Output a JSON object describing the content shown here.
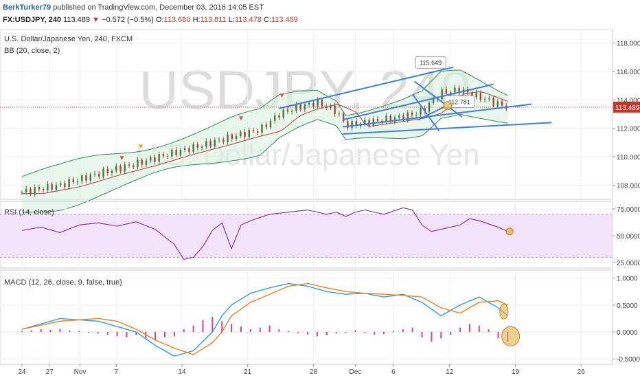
{
  "header": {
    "author": "BerkTurker79",
    "published": "published on TradingView.com, December 03, 2016 14:05 EST",
    "symbol": "FX:USDJPY, 240",
    "last": "113.489",
    "change_arrow": "▼",
    "change": "−0.572 (−0.5%)",
    "o_label": "O:",
    "o_value": "113.680",
    "h_label": "H:",
    "h_value": "113.811",
    "l_label": "L:",
    "l_value": "113.478",
    "c_label": "C:",
    "c_value": "113.489"
  },
  "watermark": {
    "line1": "USDJPY, 240",
    "line2": "U.S. Dollar/Japanese Yen"
  },
  "colors": {
    "up": "#3d7a3d",
    "down": "#b23b3b",
    "bb": "#2e8b57",
    "basis": "#b23b3b",
    "rsi": "#7a2a8c",
    "rsiBand": "#f3e3fa",
    "macd": "#2f9bde",
    "signal": "#f07f1e",
    "hist": "#d63e9a",
    "drawing": "#3f7fd4",
    "highlight": "#e0b34a"
  },
  "chart_data": [
    {
      "type": "candlestick",
      "title": "U.S. Dollar/Japanese Yen, 240, FXCM",
      "indicator": "BB (20, close, 2)",
      "ylim": [
        107,
        119
      ],
      "y_ticks": [
        "108.000",
        "110.000",
        "112.000",
        "114.000",
        "116.000",
        "118.000"
      ],
      "last_price": "113.489",
      "price_path": [
        [
          0,
          107.5
        ],
        [
          4,
          108.0
        ],
        [
          8,
          108.8
        ],
        [
          12,
          109.5
        ],
        [
          16,
          110.3
        ],
        [
          20,
          111.0
        ],
        [
          22,
          111.4
        ],
        [
          25,
          111.9
        ],
        [
          27,
          113.0
        ],
        [
          29,
          113.5
        ],
        [
          31,
          113.8
        ],
        [
          33,
          113.2
        ],
        [
          34,
          112.2
        ],
        [
          36,
          112.4
        ],
        [
          38,
          112.6
        ],
        [
          40,
          112.8
        ],
        [
          42,
          113.2
        ],
        [
          44,
          114.5
        ],
        [
          46,
          114.7
        ],
        [
          48,
          114.2
        ],
        [
          50,
          113.7
        ],
        [
          51,
          113.49
        ]
      ],
      "annotations": [
        {
          "text": "115.649",
          "value": 115.649
        },
        {
          "text": "112.781",
          "value": 112.781
        }
      ]
    },
    {
      "type": "line",
      "title": "RSI (14, close)",
      "ylim": [
        20,
        82
      ],
      "y_ticks": [
        "25.0000",
        "50.0000",
        "75.0000"
      ],
      "band": [
        30,
        70
      ],
      "series": [
        {
          "values": [
            [
              0,
              55
            ],
            [
              2,
              58
            ],
            [
              4,
              53
            ],
            [
              6,
              60
            ],
            [
              8,
              62
            ],
            [
              10,
              59
            ],
            [
              12,
              63
            ],
            [
              14,
              56
            ],
            [
              16,
              42
            ],
            [
              17,
              28
            ],
            [
              18,
              30
            ],
            [
              19,
              40
            ],
            [
              20,
              55
            ],
            [
              21,
              62
            ],
            [
              22,
              38
            ],
            [
              23,
              60
            ],
            [
              24,
              64
            ],
            [
              26,
              70
            ],
            [
              28,
              72
            ],
            [
              30,
              74
            ],
            [
              32,
              70
            ],
            [
              33,
              72
            ],
            [
              34,
              68
            ],
            [
              35,
              72
            ],
            [
              36,
              74
            ],
            [
              37,
              72
            ],
            [
              38,
              70
            ],
            [
              39,
              73
            ],
            [
              40,
              76
            ],
            [
              41,
              74
            ],
            [
              42,
              60
            ],
            [
              43,
              54
            ],
            [
              44,
              56
            ],
            [
              46,
              60
            ],
            [
              47,
              66
            ],
            [
              48,
              64
            ],
            [
              50,
              58
            ],
            [
              51,
              54
            ]
          ]
        }
      ]
    },
    {
      "type": "line",
      "title": "MACD (12, 26, close, 9, false, true)",
      "ylim": [
        -0.6,
        1.15
      ],
      "y_ticks": [
        "-0.5000",
        "0.0000",
        "0.5000",
        "1.0000"
      ],
      "series": [
        {
          "name": "MACD",
          "values": [
            [
              0,
              0.05
            ],
            [
              4,
              0.25
            ],
            [
              8,
              0.2
            ],
            [
              10,
              0.1
            ],
            [
              12,
              0.0
            ],
            [
              14,
              -0.25
            ],
            [
              16,
              -0.45
            ],
            [
              18,
              -0.35
            ],
            [
              20,
              0.0
            ],
            [
              21,
              0.3
            ],
            [
              22,
              0.5
            ],
            [
              24,
              0.72
            ],
            [
              26,
              0.82
            ],
            [
              28,
              0.9
            ],
            [
              30,
              0.85
            ],
            [
              32,
              0.75
            ],
            [
              34,
              0.7
            ],
            [
              36,
              0.72
            ],
            [
              38,
              0.65
            ],
            [
              40,
              0.7
            ],
            [
              42,
              0.55
            ],
            [
              44,
              0.3
            ],
            [
              46,
              0.5
            ],
            [
              48,
              0.65
            ],
            [
              50,
              0.45
            ],
            [
              51,
              0.3
            ]
          ]
        },
        {
          "name": "Signal",
          "values": [
            [
              0,
              0.05
            ],
            [
              4,
              0.2
            ],
            [
              8,
              0.25
            ],
            [
              10,
              0.2
            ],
            [
              12,
              0.05
            ],
            [
              14,
              -0.15
            ],
            [
              16,
              -0.3
            ],
            [
              18,
              -0.42
            ],
            [
              20,
              -0.2
            ],
            [
              21,
              0.0
            ],
            [
              22,
              0.3
            ],
            [
              24,
              0.55
            ],
            [
              26,
              0.7
            ],
            [
              28,
              0.85
            ],
            [
              30,
              0.9
            ],
            [
              32,
              0.82
            ],
            [
              34,
              0.75
            ],
            [
              36,
              0.72
            ],
            [
              38,
              0.7
            ],
            [
              40,
              0.68
            ],
            [
              42,
              0.65
            ],
            [
              44,
              0.45
            ],
            [
              46,
              0.35
            ],
            [
              48,
              0.55
            ],
            [
              50,
              0.58
            ],
            [
              51,
              0.5
            ]
          ]
        }
      ],
      "histogram": [
        [
          0,
          0.02
        ],
        [
          1,
          0.03
        ],
        [
          2,
          0.05
        ],
        [
          3,
          0.04
        ],
        [
          4,
          0.06
        ],
        [
          5,
          0.03
        ],
        [
          6,
          0.02
        ],
        [
          7,
          0.0
        ],
        [
          8,
          -0.03
        ],
        [
          9,
          -0.05
        ],
        [
          10,
          -0.08
        ],
        [
          11,
          -0.1
        ],
        [
          12,
          -0.06
        ],
        [
          13,
          -0.12
        ],
        [
          14,
          -0.15
        ],
        [
          15,
          -0.1
        ],
        [
          16,
          -0.08
        ],
        [
          17,
          0.05
        ],
        [
          18,
          0.12
        ],
        [
          19,
          0.22
        ],
        [
          20,
          0.28
        ],
        [
          21,
          0.2
        ],
        [
          22,
          0.15
        ],
        [
          23,
          0.1
        ],
        [
          24,
          0.05
        ],
        [
          25,
          0.08
        ],
        [
          26,
          0.12
        ],
        [
          27,
          0.05
        ],
        [
          28,
          0.02
        ],
        [
          29,
          -0.02
        ],
        [
          30,
          -0.05
        ],
        [
          31,
          -0.08
        ],
        [
          32,
          -0.06
        ],
        [
          33,
          -0.03
        ],
        [
          34,
          0.0
        ],
        [
          35,
          0.03
        ],
        [
          36,
          -0.02
        ],
        [
          37,
          -0.05
        ],
        [
          38,
          -0.04
        ],
        [
          39,
          0.02
        ],
        [
          40,
          0.05
        ],
        [
          41,
          0.08
        ],
        [
          42,
          -0.1
        ],
        [
          43,
          -0.18
        ],
        [
          44,
          -0.12
        ],
        [
          45,
          -0.05
        ],
        [
          46,
          0.08
        ],
        [
          47,
          0.15
        ],
        [
          48,
          0.12
        ],
        [
          49,
          0.05
        ],
        [
          50,
          -0.12
        ],
        [
          51,
          -0.18
        ]
      ]
    }
  ],
  "x_axis": {
    "labels": [
      {
        "text": "24",
        "pos": 0.0
      },
      {
        "text": "27",
        "pos": 2.9
      },
      {
        "text": "Nov",
        "pos": 6.1
      },
      {
        "text": "7",
        "pos": 9.9
      },
      {
        "text": "14",
        "pos": 16.8
      },
      {
        "text": "21",
        "pos": 23.7
      },
      {
        "text": "28",
        "pos": 30.6
      },
      {
        "text": "Dec",
        "pos": 35.0
      },
      {
        "text": "6",
        "pos": 39.0
      },
      {
        "text": "12",
        "pos": 44.9
      },
      {
        "text": "19",
        "pos": 51.8
      },
      {
        "text": "26",
        "pos": 58.7
      }
    ],
    "xlim": [
      -2.3,
      62
    ]
  }
}
